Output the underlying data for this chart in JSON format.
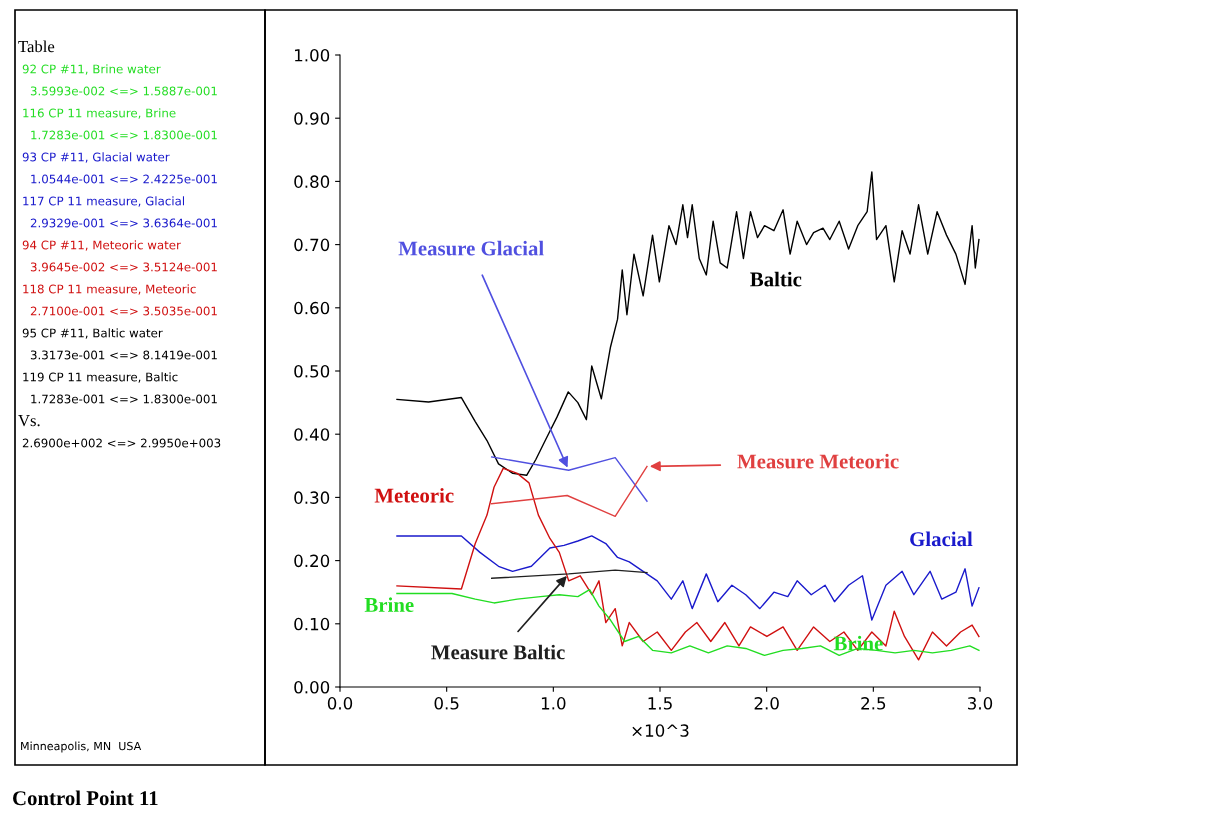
{
  "chart_data": {
    "type": "line",
    "title": "Control Point 11",
    "xlabel": "×10^3",
    "xlim": [
      0,
      3.0
    ],
    "xticks": [
      {
        "value": 0,
        "label": "0.0"
      },
      {
        "value": 0.5,
        "label": "0.5"
      },
      {
        "value": 1.0,
        "label": "1.0"
      },
      {
        "value": 1.5,
        "label": "1.5"
      },
      {
        "value": 2.0,
        "label": "2.0"
      },
      {
        "value": 2.5,
        "label": "2.5"
      },
      {
        "value": 3.0,
        "label": "3.0"
      }
    ],
    "ylim": [
      0,
      1.0
    ],
    "yticks": [
      {
        "value": 0,
        "label": "0.00"
      },
      {
        "value": 0.1,
        "label": "0.10"
      },
      {
        "value": 0.2,
        "label": "0.20"
      },
      {
        "value": 0.3,
        "label": "0.30"
      },
      {
        "value": 0.4,
        "label": "0.40"
      },
      {
        "value": 0.5,
        "label": "0.50"
      },
      {
        "value": 0.6,
        "label": "0.60"
      },
      {
        "value": 0.7,
        "label": "0.70"
      },
      {
        "value": 0.8,
        "label": "0.80"
      },
      {
        "value": 0.9,
        "label": "0.90"
      },
      {
        "value": 1.0,
        "label": "1.00"
      }
    ],
    "grid": false,
    "marker": "none",
    "line_style": "solid",
    "series": [
      {
        "name": "Baltic",
        "color": "#000000",
        "x": [
          0.267,
          0.415,
          0.569,
          0.634,
          0.689,
          0.743,
          0.81,
          0.875,
          0.918,
          0.962,
          1.017,
          1.07,
          1.115,
          1.155,
          1.18,
          1.225,
          1.268,
          1.301,
          1.323,
          1.345,
          1.378,
          1.421,
          1.465,
          1.497,
          1.542,
          1.575,
          1.607,
          1.629,
          1.651,
          1.684,
          1.717,
          1.749,
          1.782,
          1.815,
          1.859,
          1.891,
          1.924,
          1.957,
          1.99,
          2.034,
          2.077,
          2.11,
          2.143,
          2.187,
          2.22,
          2.264,
          2.296,
          2.34,
          2.384,
          2.427,
          2.471,
          2.493,
          2.515,
          2.559,
          2.598,
          2.635,
          2.672,
          2.712,
          2.755,
          2.799,
          2.843,
          2.887,
          2.93,
          2.963,
          2.978,
          2.995
        ],
        "values": [
          0.455,
          0.451,
          0.458,
          0.42,
          0.39,
          0.353,
          0.338,
          0.335,
          0.36,
          0.39,
          0.427,
          0.467,
          0.45,
          0.423,
          0.508,
          0.456,
          0.538,
          0.582,
          0.66,
          0.589,
          0.685,
          0.619,
          0.715,
          0.641,
          0.73,
          0.7,
          0.763,
          0.711,
          0.763,
          0.678,
          0.652,
          0.737,
          0.671,
          0.663,
          0.752,
          0.678,
          0.752,
          0.711,
          0.73,
          0.722,
          0.755,
          0.685,
          0.737,
          0.7,
          0.719,
          0.726,
          0.708,
          0.737,
          0.693,
          0.73,
          0.752,
          0.815,
          0.708,
          0.73,
          0.641,
          0.722,
          0.685,
          0.763,
          0.685,
          0.752,
          0.715,
          0.685,
          0.637,
          0.73,
          0.663,
          0.708
        ]
      },
      {
        "name": "Glacial",
        "color": "#1a1acc",
        "x": [
          0.267,
          0.569,
          0.656,
          0.743,
          0.809,
          0.897,
          0.984,
          1.05,
          1.115,
          1.18,
          1.246,
          1.301,
          1.356,
          1.421,
          1.487,
          1.553,
          1.607,
          1.651,
          1.717,
          1.771,
          1.837,
          1.902,
          1.968,
          2.034,
          2.099,
          2.143,
          2.209,
          2.274,
          2.318,
          2.384,
          2.449,
          2.493,
          2.559,
          2.635,
          2.69,
          2.766,
          2.821,
          2.887,
          2.93,
          2.963,
          2.995
        ],
        "values": [
          0.239,
          0.239,
          0.213,
          0.191,
          0.183,
          0.191,
          0.22,
          0.224,
          0.231,
          0.239,
          0.227,
          0.205,
          0.198,
          0.183,
          0.168,
          0.139,
          0.168,
          0.124,
          0.179,
          0.135,
          0.161,
          0.146,
          0.124,
          0.15,
          0.143,
          0.168,
          0.146,
          0.161,
          0.135,
          0.161,
          0.176,
          0.106,
          0.161,
          0.183,
          0.146,
          0.183,
          0.139,
          0.15,
          0.187,
          0.128,
          0.157
        ]
      },
      {
        "name": "Meteoric",
        "color": "#d01010",
        "x": [
          0.267,
          0.569,
          0.634,
          0.689,
          0.722,
          0.765,
          0.831,
          0.886,
          0.93,
          0.984,
          1.028,
          1.072,
          1.126,
          1.181,
          1.214,
          1.246,
          1.29,
          1.323,
          1.356,
          1.421,
          1.487,
          1.553,
          1.619,
          1.673,
          1.738,
          1.804,
          1.87,
          1.924,
          2.001,
          2.077,
          2.143,
          2.22,
          2.296,
          2.362,
          2.427,
          2.493,
          2.559,
          2.598,
          2.646,
          2.712,
          2.777,
          2.843,
          2.909,
          2.963,
          2.995
        ],
        "values": [
          0.16,
          0.155,
          0.227,
          0.272,
          0.316,
          0.346,
          0.338,
          0.323,
          0.272,
          0.235,
          0.213,
          0.168,
          0.176,
          0.146,
          0.168,
          0.102,
          0.124,
          0.065,
          0.102,
          0.072,
          0.087,
          0.058,
          0.087,
          0.102,
          0.072,
          0.102,
          0.065,
          0.095,
          0.08,
          0.095,
          0.058,
          0.095,
          0.072,
          0.087,
          0.058,
          0.087,
          0.065,
          0.12,
          0.08,
          0.043,
          0.087,
          0.065,
          0.087,
          0.098,
          0.08
        ]
      },
      {
        "name": "Brine",
        "color": "#22dd22",
        "x": [
          0.267,
          0.525,
          0.634,
          0.722,
          0.831,
          0.94,
          1.028,
          1.115,
          1.17,
          1.214,
          1.268,
          1.334,
          1.4,
          1.465,
          1.553,
          1.64,
          1.727,
          1.815,
          1.902,
          1.99,
          2.077,
          2.165,
          2.252,
          2.34,
          2.427,
          2.515,
          2.602,
          2.69,
          2.777,
          2.865,
          2.952,
          2.995
        ],
        "values": [
          0.148,
          0.148,
          0.139,
          0.133,
          0.139,
          0.143,
          0.146,
          0.143,
          0.154,
          0.128,
          0.106,
          0.072,
          0.08,
          0.058,
          0.054,
          0.065,
          0.054,
          0.065,
          0.061,
          0.05,
          0.058,
          0.061,
          0.065,
          0.05,
          0.061,
          0.058,
          0.054,
          0.058,
          0.054,
          0.058,
          0.065,
          0.058
        ]
      },
      {
        "name": "Measure Glacial",
        "color": "#5050e0",
        "x": [
          0.711,
          1.072,
          1.29,
          1.439
        ],
        "values": [
          0.364,
          0.343,
          0.363,
          0.294
        ]
      },
      {
        "name": "Measure Meteoric",
        "color": "#e04040",
        "x": [
          0.711,
          1.065,
          1.29,
          1.439
        ],
        "values": [
          0.29,
          0.303,
          0.27,
          0.349
        ]
      },
      {
        "name": "Measure Baltic",
        "color": "#202020",
        "x": [
          0.711,
          1.072,
          1.29,
          1.439
        ],
        "values": [
          0.172,
          0.179,
          0.185,
          0.181
        ]
      }
    ],
    "annotations": [
      "Brine",
      "Table",
      "92 CP #11, Brine water",
      "3.5993e-002 <=> 1.5887e-001",
      "116 CP 11 measure, Brine",
      "1.7283e-001 <=> 1.8300e-001",
      "93 CP #11, Glacial water",
      "1.0544e-001 <=> 2.4225e-001",
      "117 CP 11 measure, Glacial",
      "2.9329e-001 <=> 3.6364e-001",
      "94 CP #11, Meteoric water",
      "3.9645e-002 <=> 3.5124e-001",
      "118 CP 11 measure, Meteoric",
      "2.7100e-001 <=> 3.5035e-001",
      "95 CP #11, Baltic water",
      "3.3173e-001 <=> 8.1419e-001",
      "119 CP 11 measure, Baltic",
      "1.7283e-001 <=> 1.8300e-001",
      "Vs.",
      "2.6900e+002 <=> 2.9950e+003",
      "Minneapolis, MN  USA"
    ]
  }
}
